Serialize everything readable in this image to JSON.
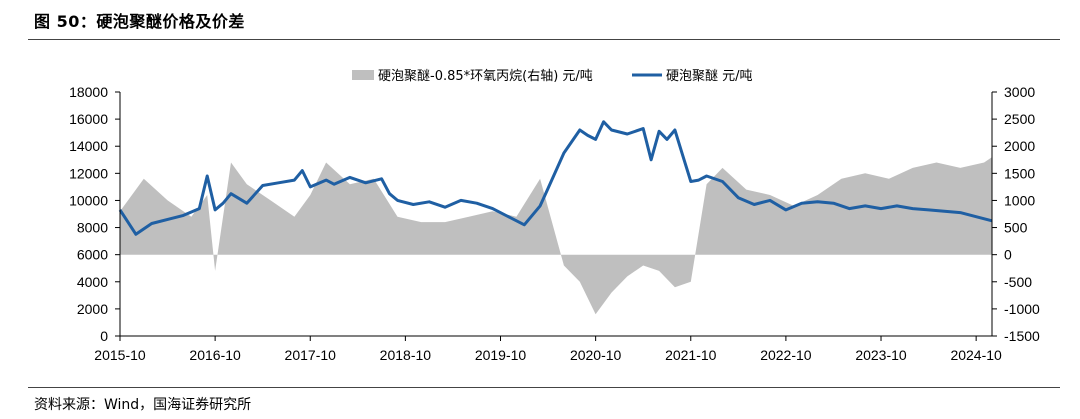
{
  "header": {
    "title": "图 50：硬泡聚醚价格及价差"
  },
  "footer": {
    "source": "资料来源：Wind，国海证券研究所"
  },
  "colors": {
    "price_line": "#1f5fa3",
    "spread_area": "#bfbfbf",
    "axis": "#000000"
  },
  "chart_data": {
    "type": "line",
    "x_ticks": [
      "2015-10",
      "2016-10",
      "2017-10",
      "2018-10",
      "2019-10",
      "2020-10",
      "2021-10",
      "2022-10",
      "2023-10",
      "2024-10"
    ],
    "x_range": [
      "2015-10",
      "2024-12"
    ],
    "left_axis": {
      "range": [
        0,
        18000
      ],
      "ticks": [
        0,
        2000,
        4000,
        6000,
        8000,
        10000,
        12000,
        14000,
        16000,
        18000
      ]
    },
    "right_axis": {
      "range": [
        -1500,
        3000
      ],
      "ticks": [
        -1500,
        -1000,
        -500,
        0,
        500,
        1000,
        1500,
        2000,
        2500,
        3000
      ]
    },
    "legend_position": "top",
    "grid": false,
    "series": [
      {
        "name": "硬泡聚醚-0.85*环氧丙烷(右轴) 元/吨",
        "type": "area",
        "axis": "right",
        "x": [
          "2015-10",
          "2016-01",
          "2016-04",
          "2016-07",
          "2016-09",
          "2016-10",
          "2016-12",
          "2017-02",
          "2017-05",
          "2017-08",
          "2017-10",
          "2017-12",
          "2018-03",
          "2018-06",
          "2018-09",
          "2018-12",
          "2019-03",
          "2019-06",
          "2019-09",
          "2019-12",
          "2020-03",
          "2020-06",
          "2020-08",
          "2020-10",
          "2020-12",
          "2021-02",
          "2021-04",
          "2021-06",
          "2021-08",
          "2021-10",
          "2021-12",
          "2022-02",
          "2022-05",
          "2022-08",
          "2022-11",
          "2023-02",
          "2023-05",
          "2023-08",
          "2023-11",
          "2024-02",
          "2024-05",
          "2024-08",
          "2024-11",
          "2024-12"
        ],
        "values": [
          800,
          1400,
          1000,
          700,
          1100,
          -300,
          1700,
          1300,
          1000,
          700,
          1100,
          1700,
          1300,
          1400,
          700,
          600,
          600,
          700,
          800,
          700,
          1400,
          -200,
          -500,
          -1100,
          -700,
          -400,
          -200,
          -300,
          -600,
          -500,
          1300,
          1600,
          1200,
          1100,
          900,
          1100,
          1400,
          1500,
          1400,
          1600,
          1700,
          1600,
          1700,
          1800
        ]
      },
      {
        "name": "硬泡聚醚 元/吨",
        "type": "line",
        "axis": "left",
        "x": [
          "2015-10",
          "2015-12",
          "2016-02",
          "2016-04",
          "2016-06",
          "2016-08",
          "2016-09",
          "2016-10",
          "2016-11",
          "2016-12",
          "2017-02",
          "2017-04",
          "2017-06",
          "2017-08",
          "2017-09",
          "2017-10",
          "2017-12",
          "2018-01",
          "2018-03",
          "2018-05",
          "2018-07",
          "2018-08",
          "2018-09",
          "2018-11",
          "2019-01",
          "2019-03",
          "2019-05",
          "2019-07",
          "2019-09",
          "2019-11",
          "2020-01",
          "2020-03",
          "2020-04",
          "2020-06",
          "2020-08",
          "2020-09",
          "2020-10",
          "2020-11",
          "2020-12",
          "2021-02",
          "2021-04",
          "2021-05",
          "2021-06",
          "2021-07",
          "2021-08",
          "2021-09",
          "2021-10",
          "2021-11",
          "2021-12",
          "2022-02",
          "2022-04",
          "2022-06",
          "2022-08",
          "2022-10",
          "2022-12",
          "2023-02",
          "2023-04",
          "2023-06",
          "2023-08",
          "2023-10",
          "2023-12",
          "2024-02",
          "2024-04",
          "2024-06",
          "2024-08",
          "2024-10",
          "2024-12"
        ],
        "values": [
          9300,
          7500,
          8300,
          8600,
          8900,
          9400,
          11800,
          9300,
          9800,
          10500,
          9800,
          11100,
          11300,
          11500,
          12200,
          11000,
          11500,
          11200,
          11700,
          11300,
          11600,
          10500,
          10000,
          9700,
          9900,
          9500,
          10000,
          9800,
          9400,
          8800,
          8200,
          9600,
          10900,
          13500,
          15200,
          14800,
          14500,
          15800,
          15200,
          14900,
          15300,
          13000,
          15100,
          14500,
          15200,
          13300,
          11400,
          11500,
          11800,
          11400,
          10200,
          9700,
          10000,
          9300,
          9800,
          9900,
          9800,
          9400,
          9600,
          9400,
          9600,
          9400,
          9300,
          9200,
          9100,
          8800,
          8500
        ]
      }
    ]
  }
}
